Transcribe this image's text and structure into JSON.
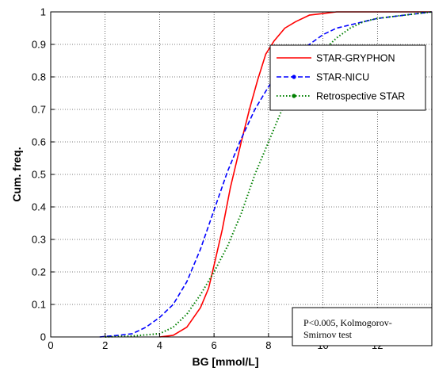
{
  "chart_data": {
    "type": "line",
    "xlabel": "BG [mmol/L]",
    "ylabel": "Cum. freq.",
    "xlim": [
      0,
      14
    ],
    "ylim": [
      0,
      1
    ],
    "xticks": [
      "0",
      "2",
      "4",
      "6",
      "8",
      "10",
      "12"
    ],
    "yticks": [
      "0",
      "0.1",
      "0.2",
      "0.3",
      "0.4",
      "0.5",
      "0.6",
      "0.7",
      "0.8",
      "0.9",
      "1"
    ],
    "grid": true,
    "legend_position": "top-right",
    "annotation": "P<0.005, Kolmogorov-Smirnov test",
    "annotation_lines": [
      "P<0.005, Kolmogorov-",
      "Smirnov test"
    ],
    "series": [
      {
        "name": "STAR-GRYPHON",
        "color": "#ff0000",
        "style": "solid",
        "x": [
          4.0,
          4.5,
          5.0,
          5.5,
          5.8,
          6.0,
          6.3,
          6.6,
          7.0,
          7.3,
          7.6,
          7.9,
          8.2,
          8.6,
          9.0,
          9.5,
          10.0,
          10.5,
          11.0,
          11.5,
          14.0
        ],
        "y": [
          0.0,
          0.005,
          0.03,
          0.09,
          0.15,
          0.22,
          0.33,
          0.46,
          0.6,
          0.7,
          0.79,
          0.87,
          0.91,
          0.95,
          0.97,
          0.99,
          0.995,
          1.0,
          1.0,
          1.0,
          1.0
        ]
      },
      {
        "name": "STAR-NICU",
        "color": "#0000ff",
        "style": "dashed",
        "x": [
          1.8,
          2.5,
          3.0,
          3.5,
          4.0,
          4.5,
          5.0,
          5.5,
          6.0,
          6.5,
          7.0,
          7.5,
          8.0,
          8.5,
          9.0,
          9.5,
          10.0,
          10.5,
          11.0,
          11.5,
          12.0,
          13.0,
          14.0
        ],
        "y": [
          0.0,
          0.005,
          0.01,
          0.03,
          0.06,
          0.1,
          0.17,
          0.27,
          0.39,
          0.51,
          0.61,
          0.7,
          0.77,
          0.83,
          0.87,
          0.9,
          0.93,
          0.95,
          0.96,
          0.97,
          0.98,
          0.99,
          1.0
        ]
      },
      {
        "name": "Retrospective STAR",
        "color": "#008000",
        "style": "dotted",
        "x": [
          2.0,
          3.0,
          4.0,
          4.5,
          5.0,
          5.5,
          6.0,
          6.5,
          7.0,
          7.5,
          8.0,
          8.5,
          9.0,
          9.5,
          10.0,
          10.5,
          11.0,
          11.5,
          12.0,
          13.0,
          14.0
        ],
        "y": [
          0.0,
          0.003,
          0.01,
          0.03,
          0.07,
          0.13,
          0.2,
          0.28,
          0.38,
          0.5,
          0.6,
          0.7,
          0.77,
          0.83,
          0.88,
          0.92,
          0.95,
          0.97,
          0.98,
          0.99,
          1.0
        ]
      }
    ]
  }
}
